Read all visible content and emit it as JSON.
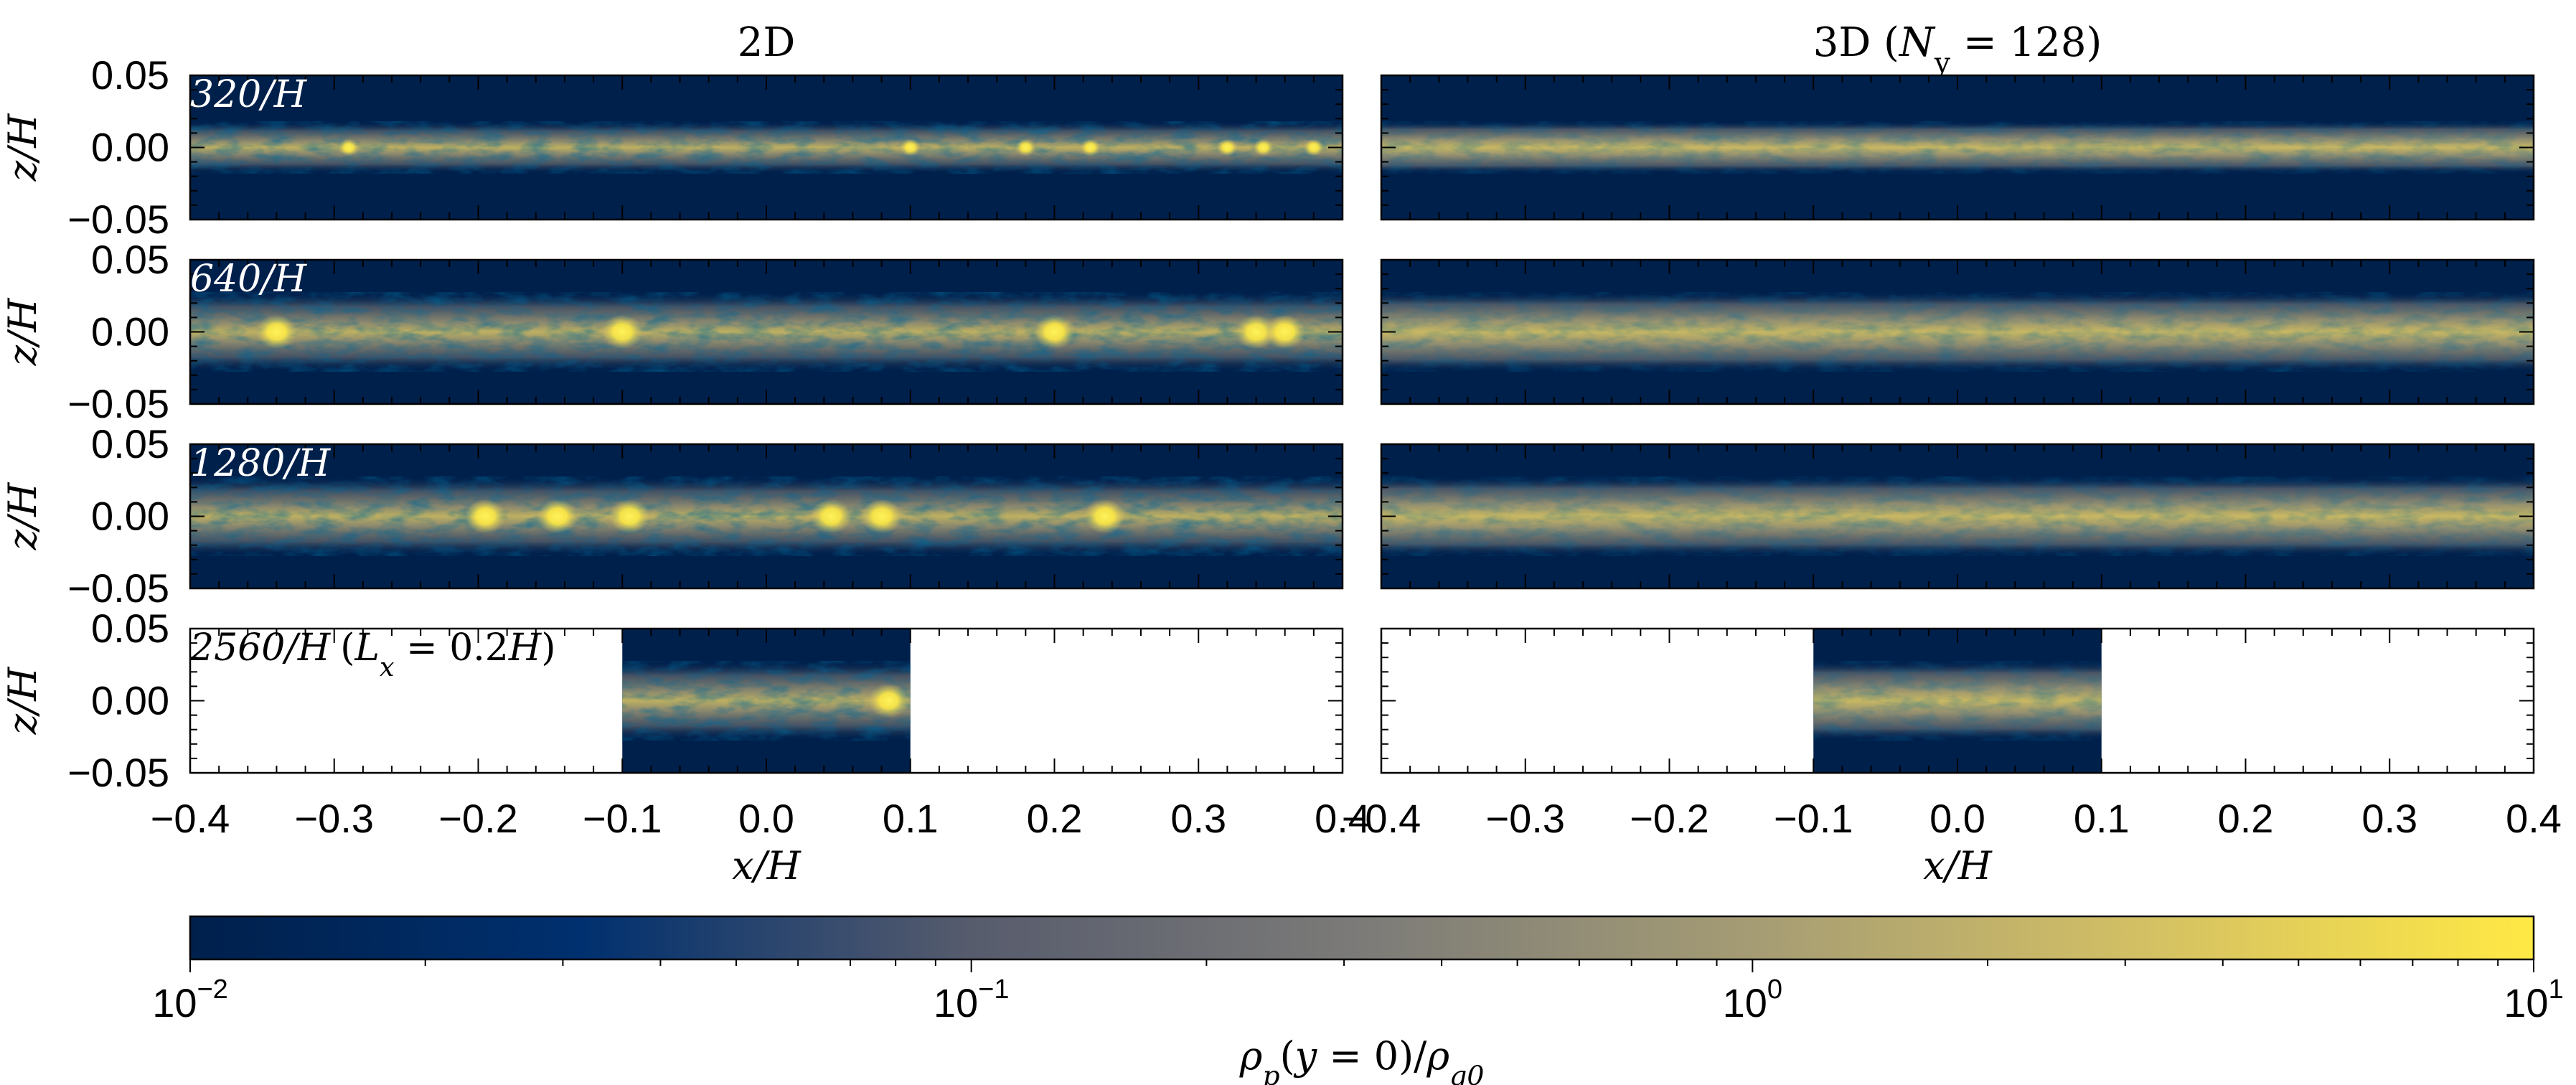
{
  "chart_data": {
    "type": "heatmap",
    "columns": [
      {
        "title": "2D"
      },
      {
        "title": "3D (N_y = 128)",
        "title_parts": [
          "3D (",
          "N",
          "y",
          " = 128)"
        ]
      }
    ],
    "rows": [
      {
        "label": "320/H",
        "domain_x": [
          -0.4,
          0.4
        ],
        "peak_value": 10.0,
        "clumps_2d": [
          -0.29,
          0.1,
          0.18,
          0.225,
          0.32,
          0.345,
          0.38
        ]
      },
      {
        "label": "640/H",
        "domain_x": [
          -0.4,
          0.4
        ],
        "peak_value": 10.0,
        "clumps_2d": [
          -0.34,
          -0.1,
          0.2,
          0.34,
          0.36
        ]
      },
      {
        "label": "1280/H",
        "domain_x": [
          -0.4,
          0.4
        ],
        "peak_value": 10.0,
        "clumps_2d": [
          -0.195,
          -0.145,
          -0.095,
          0.045,
          0.08,
          0.235
        ]
      },
      {
        "label": "2560/H",
        "label_suffix": "(L_x = 0.2H)",
        "label_suffix_parts": [
          "(",
          "L",
          "x",
          " = 0.2",
          "H",
          ")"
        ],
        "domain_x": [
          -0.1,
          0.1
        ],
        "peak_value": 10.0,
        "clumps_2d": [
          0.085
        ]
      }
    ],
    "x_axis": {
      "label": "x/H",
      "range": [
        -0.4,
        0.4
      ],
      "ticks": [
        -0.4,
        -0.3,
        -0.2,
        -0.1,
        0.0,
        0.1,
        0.2,
        0.3,
        0.4
      ],
      "tick_labels": [
        "−0.4",
        "−0.3",
        "−0.2",
        "−0.1",
        "0.0",
        "0.1",
        "0.2",
        "0.3",
        "0.4"
      ]
    },
    "y_axis": {
      "label": "z/H",
      "range": [
        -0.05,
        0.05
      ],
      "ticks": [
        -0.05,
        0.0,
        0.05
      ],
      "tick_labels": [
        "−0.05",
        "0.00",
        "0.05"
      ]
    },
    "colorbar": {
      "label": "ρ_p(y = 0)/ρ_g0",
      "label_parts": [
        "ρ",
        "p",
        "(",
        "y",
        " = 0)/",
        "ρ",
        "g0"
      ],
      "scale": "log",
      "range": [
        0.01,
        10
      ],
      "ticks": [
        0.01,
        0.1,
        1,
        10
      ],
      "tick_labels": [
        {
          "base": "10",
          "exp": "−2"
        },
        {
          "base": "10",
          "exp": "−1"
        },
        {
          "base": "10",
          "exp": "0"
        },
        {
          "base": "10",
          "exp": "1"
        }
      ],
      "colors": [
        "#00204c",
        "#00306f",
        "#575c6d",
        "#7c7b78",
        "#a59c74",
        "#d3c064",
        "#ffe945"
      ]
    },
    "background_color": "#00204c"
  }
}
